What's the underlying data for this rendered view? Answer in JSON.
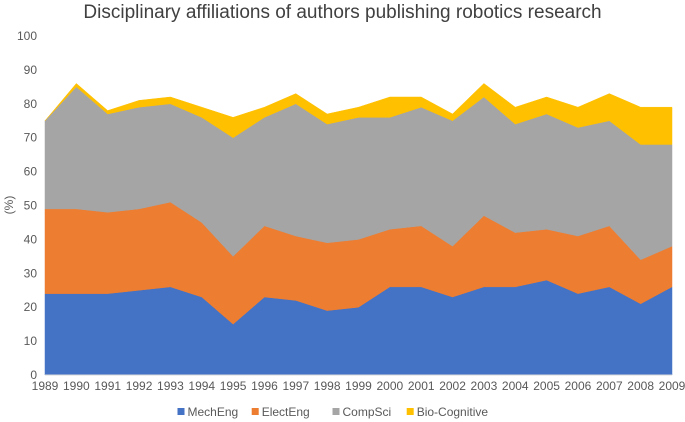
{
  "chart_data": {
    "type": "area",
    "stacked": true,
    "title": "Disciplinary affiliations of authors publishing robotics research",
    "xlabel": "",
    "ylabel": "(%)",
    "ylim": [
      0,
      100
    ],
    "yticks": [
      0,
      10,
      20,
      30,
      40,
      50,
      60,
      70,
      80,
      90,
      100
    ],
    "grid": false,
    "legend_position": "bottom",
    "x": [
      "1989",
      "1990",
      "1991",
      "1992",
      "1993",
      "1994",
      "1995",
      "1996",
      "1997",
      "1998",
      "1999",
      "2000",
      "2001",
      "2002",
      "2003",
      "2004",
      "2005",
      "2006",
      "2007",
      "2008",
      "2009"
    ],
    "series": [
      {
        "name": "MechEng",
        "color": "#4472C4",
        "values": [
          24,
          24,
          24,
          25,
          26,
          23,
          15,
          23,
          22,
          19,
          20,
          26,
          26,
          23,
          26,
          26,
          28,
          24,
          26,
          21,
          26
        ]
      },
      {
        "name": "ElectEng",
        "color": "#ED7D31",
        "values": [
          25,
          25,
          24,
          24,
          25,
          22,
          20,
          21,
          19,
          20,
          20,
          17,
          18,
          15,
          21,
          16,
          15,
          17,
          18,
          13,
          12
        ]
      },
      {
        "name": "CompSci",
        "color": "#A5A5A5",
        "values": [
          26,
          36,
          29,
          30,
          29,
          31,
          35,
          32,
          39,
          35,
          36,
          33,
          35,
          37,
          35,
          32,
          34,
          32,
          31,
          34,
          30
        ]
      },
      {
        "name": "Bio-Cognitive",
        "color": "#FFC000",
        "values": [
          0,
          1,
          1,
          2,
          2,
          3,
          6,
          3,
          3,
          3,
          3,
          6,
          3,
          2,
          4,
          5,
          5,
          6,
          8,
          11,
          11
        ]
      }
    ]
  }
}
